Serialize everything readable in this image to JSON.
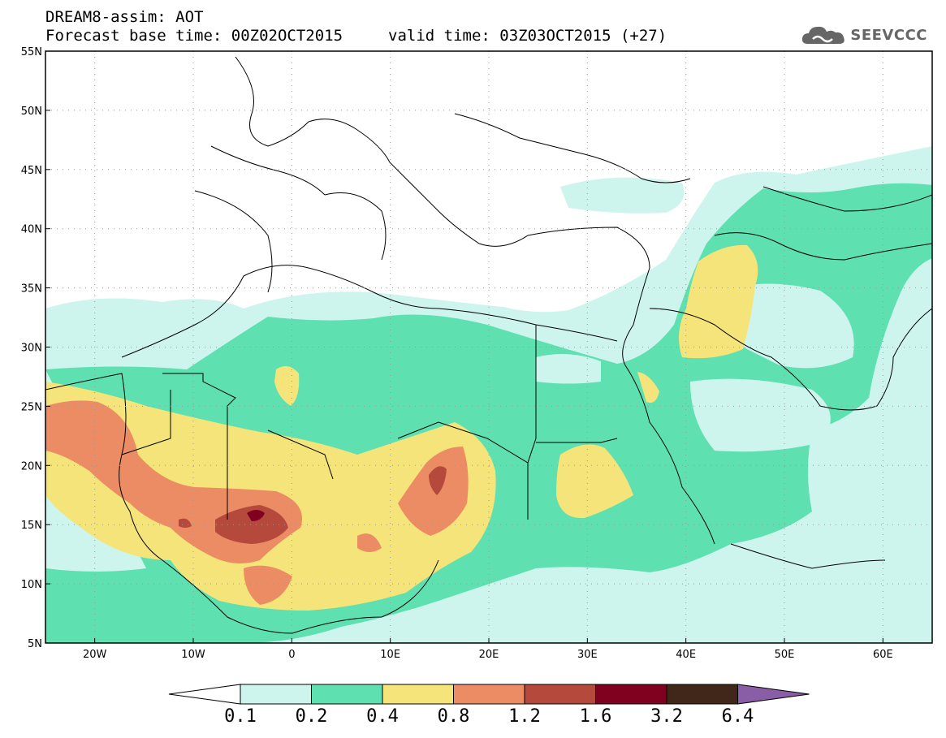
{
  "header": {
    "line1": "DREAM8-assim: AOT",
    "line2_left": "Forecast base time: 00Z02OCT2015",
    "line2_right": "valid time: 03Z03OCT2015 (+27)"
  },
  "logo": {
    "text": "SEEVCCC",
    "icon": "cloud-logo-icon"
  },
  "map": {
    "lon_range": [
      -25,
      65
    ],
    "lat_range": [
      5,
      55
    ],
    "lon_ticks": [
      {
        "value": -20,
        "label": "20W"
      },
      {
        "value": -10,
        "label": "10W"
      },
      {
        "value": 0,
        "label": "0"
      },
      {
        "value": 10,
        "label": "10E"
      },
      {
        "value": 20,
        "label": "20E"
      },
      {
        "value": 30,
        "label": "30E"
      },
      {
        "value": 40,
        "label": "40E"
      },
      {
        "value": 50,
        "label": "50E"
      },
      {
        "value": 60,
        "label": "60E"
      }
    ],
    "lat_ticks": [
      {
        "value": 55,
        "label": "55N"
      },
      {
        "value": 50,
        "label": "50N"
      },
      {
        "value": 45,
        "label": "45N"
      },
      {
        "value": 40,
        "label": "40N"
      },
      {
        "value": 35,
        "label": "35N"
      },
      {
        "value": 30,
        "label": "30N"
      },
      {
        "value": 25,
        "label": "25N"
      },
      {
        "value": 20,
        "label": "20N"
      },
      {
        "value": 15,
        "label": "15N"
      },
      {
        "value": 10,
        "label": "10N"
      },
      {
        "value": 5,
        "label": "5N"
      }
    ],
    "grid": true
  },
  "legend": {
    "bins": [
      {
        "color": "#cdf5ee"
      },
      {
        "color": "#5ee0b0"
      },
      {
        "color": "#f5e47a"
      },
      {
        "color": "#ec8c65"
      },
      {
        "color": "#b5493b"
      },
      {
        "color": "#800020"
      },
      {
        "color": "#40271a"
      }
    ],
    "low_arrow_color": "#ffffff",
    "high_arrow_color": "#8a5ea6",
    "labels": [
      "0.1",
      "0.2",
      "0.4",
      "0.8",
      "1.2",
      "1.6",
      "3.2",
      "6.4"
    ]
  },
  "colors": {
    "c01": "#cdf5ee",
    "c02": "#5ee0b0",
    "c04": "#f5e47a",
    "c08": "#ec8c65",
    "c12": "#b5493b",
    "c16": "#800020"
  }
}
